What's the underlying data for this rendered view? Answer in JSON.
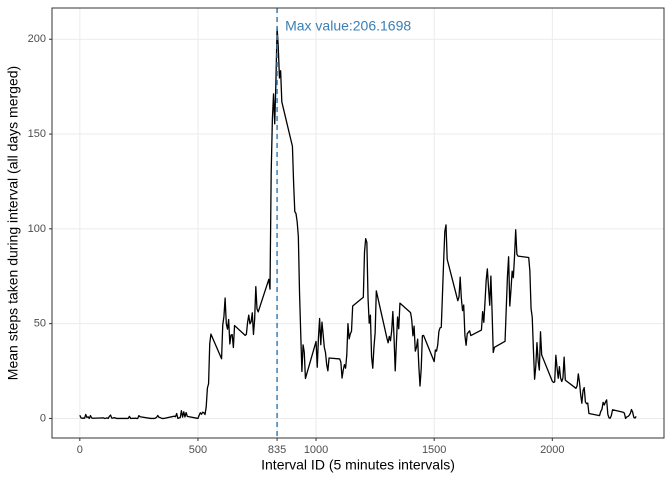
{
  "chart_data": {
    "type": "line",
    "x_label": "Interval ID (5 minutes intervals)",
    "y_label": "Mean steps taken during interval (all days merged)",
    "annotation": "Max value:206.1698",
    "vline": 835,
    "vline_color": "#3a7fb5",
    "xlim": [
      -117.75,
      2472.75
    ],
    "ylim": [
      -10.31,
      216.48
    ],
    "xticks": [
      0,
      500,
      835,
      1000,
      1500,
      2000
    ],
    "yticks": [
      0,
      50,
      100,
      150,
      200
    ],
    "grid": true,
    "series": [
      {
        "name": "mean steps",
        "color": "#000000",
        "x": [
          0,
          5,
          10,
          15,
          20,
          25,
          30,
          35,
          40,
          45,
          50,
          55,
          100,
          105,
          110,
          115,
          120,
          125,
          130,
          135,
          140,
          145,
          150,
          155,
          200,
          205,
          210,
          215,
          220,
          225,
          230,
          235,
          240,
          245,
          250,
          255,
          300,
          305,
          310,
          315,
          320,
          325,
          330,
          335,
          340,
          345,
          350,
          355,
          400,
          405,
          410,
          415,
          420,
          425,
          430,
          435,
          440,
          445,
          450,
          455,
          500,
          505,
          510,
          515,
          520,
          525,
          530,
          535,
          540,
          545,
          550,
          555,
          600,
          605,
          610,
          615,
          620,
          625,
          630,
          635,
          640,
          645,
          650,
          655,
          700,
          705,
          710,
          715,
          720,
          725,
          730,
          735,
          740,
          745,
          750,
          755,
          800,
          805,
          810,
          815,
          820,
          825,
          830,
          835,
          840,
          845,
          850,
          855,
          900,
          905,
          910,
          915,
          920,
          925,
          930,
          935,
          940,
          945,
          950,
          955,
          1000,
          1005,
          1010,
          1015,
          1020,
          1025,
          1030,
          1035,
          1040,
          1045,
          1050,
          1055,
          1100,
          1105,
          1110,
          1115,
          1120,
          1125,
          1130,
          1135,
          1140,
          1145,
          1150,
          1155,
          1200,
          1205,
          1210,
          1215,
          1220,
          1225,
          1230,
          1235,
          1240,
          1245,
          1250,
          1255,
          1300,
          1305,
          1310,
          1315,
          1320,
          1325,
          1330,
          1335,
          1340,
          1345,
          1350,
          1355,
          1400,
          1405,
          1410,
          1415,
          1420,
          1425,
          1430,
          1435,
          1440,
          1445,
          1450,
          1455,
          1500,
          1505,
          1510,
          1515,
          1520,
          1525,
          1530,
          1535,
          1540,
          1545,
          1550,
          1555,
          1600,
          1605,
          1610,
          1615,
          1620,
          1625,
          1630,
          1635,
          1640,
          1645,
          1650,
          1655,
          1700,
          1705,
          1710,
          1715,
          1720,
          1725,
          1730,
          1735,
          1740,
          1745,
          1750,
          1755,
          1800,
          1805,
          1810,
          1815,
          1820,
          1825,
          1830,
          1835,
          1840,
          1845,
          1850,
          1855,
          1900,
          1905,
          1910,
          1915,
          1920,
          1925,
          1930,
          1935,
          1940,
          1945,
          1950,
          1955,
          2000,
          2005,
          2010,
          2015,
          2020,
          2025,
          2030,
          2035,
          2040,
          2045,
          2050,
          2055,
          2100,
          2105,
          2110,
          2115,
          2120,
          2125,
          2130,
          2135,
          2140,
          2145,
          2150,
          2155,
          2200,
          2205,
          2210,
          2215,
          2220,
          2225,
          2230,
          2235,
          2240,
          2245,
          2250,
          2255,
          2300,
          2305,
          2310,
          2315,
          2320,
          2325,
          2330,
          2335,
          2340,
          2345,
          2350,
          2355
        ],
        "values": [
          1.7,
          0.3,
          0.1,
          0.2,
          0.1,
          2.1,
          0.5,
          0.9,
          0,
          1.5,
          0.3,
          0.1,
          0.3,
          0,
          0.1,
          0.3,
          0,
          1.1,
          1.8,
          0.2,
          0.2,
          0.4,
          0.3,
          0,
          0,
          0,
          1.1,
          0,
          0,
          0.1,
          0,
          0.2,
          0,
          0,
          1.5,
          0.9,
          0,
          0,
          0,
          0,
          0.2,
          0.6,
          1.6,
          0.6,
          0.5,
          0.1,
          0,
          0,
          1.2,
          0.9,
          2.6,
          0,
          0.3,
          0.4,
          4.1,
          0.7,
          3.5,
          0.8,
          3.1,
          1.1,
          0,
          1.6,
          3,
          2.2,
          3.3,
          3,
          2.1,
          6.1,
          16,
          18.3,
          39.5,
          44.5,
          31.5,
          49.3,
          53.8,
          63.5,
          50,
          47.1,
          52.2,
          39.3,
          44,
          44.2,
          37.4,
          49,
          43.8,
          44.4,
          50.5,
          54.5,
          49.9,
          51,
          55.7,
          44.3,
          52.3,
          69.5,
          57.8,
          56.2,
          73.4,
          68.2,
          129.4,
          157.5,
          171.2,
          155.4,
          177.3,
          206.1698,
          195.9,
          179.6,
          183.4,
          167,
          143.5,
          124,
          109.1,
          108.1,
          103.7,
          95.97,
          66.2,
          45.2,
          24.8,
          38.8,
          34.98,
          21.1,
          40.6,
          27,
          42.4,
          52.7,
          38.9,
          50.8,
          44.3,
          37.4,
          34.7,
          28.3,
          25.1,
          31.9,
          31.4,
          29.7,
          21.3,
          25.5,
          28.4,
          26.5,
          33.4,
          50,
          42,
          44.6,
          46,
          59.3,
          63.9,
          87.7,
          94.8,
          92.8,
          63.4,
          50.2,
          54.5,
          32.4,
          26.5,
          37.7,
          45.1,
          67.3,
          42.3,
          39.9,
          43.3,
          40.98,
          46.2,
          56.4,
          42.8,
          25.1,
          39.97,
          53.5,
          47.3,
          60.8,
          55.8,
          51.96,
          43.6,
          48.7,
          35.5,
          37.5,
          41.8,
          27.5,
          17.1,
          26.1,
          43.6,
          43.8,
          30,
          36.1,
          35.5,
          38.8,
          45.96,
          47.8,
          48.1,
          65.3,
          82.9,
          98.7,
          102.1,
          83.97,
          62.1,
          64.1,
          74.5,
          63.2,
          56.9,
          59.8,
          43.9,
          38.6,
          44.7,
          45.5,
          46.2,
          43.7,
          46.6,
          56.3,
          50.7,
          61.2,
          72.7,
          78.9,
          68.9,
          59.7,
          75.1,
          56.5,
          34.8,
          37.5,
          40.7,
          58,
          74.7,
          85.3,
          59.3,
          67.8,
          77.7,
          74.2,
          85.3,
          99.5,
          86.6,
          85.6,
          84.9,
          77.8,
          58,
          53.4,
          36.3,
          20.7,
          27.4,
          40,
          30.2,
          25.5,
          45.7,
          33.5,
          19.6,
          19,
          19.3,
          33.3,
          26.8,
          21.2,
          27.3,
          21.3,
          19.5,
          21.3,
          32.3,
          20.2,
          15.9,
          17.2,
          23.5,
          19.2,
          12.5,
          8,
          14.7,
          16.3,
          8.7,
          7.8,
          8.1,
          2.6,
          1.5,
          3.7,
          4.8,
          8.5,
          7.1,
          8.7,
          9.8,
          2.2,
          0.3,
          0.1,
          1.6,
          4.6,
          3.3,
          2.8,
          0,
          0.8,
          1,
          1.6,
          2.6,
          4.7,
          3.3,
          0.6,
          0.2,
          1.1
        ]
      }
    ]
  }
}
